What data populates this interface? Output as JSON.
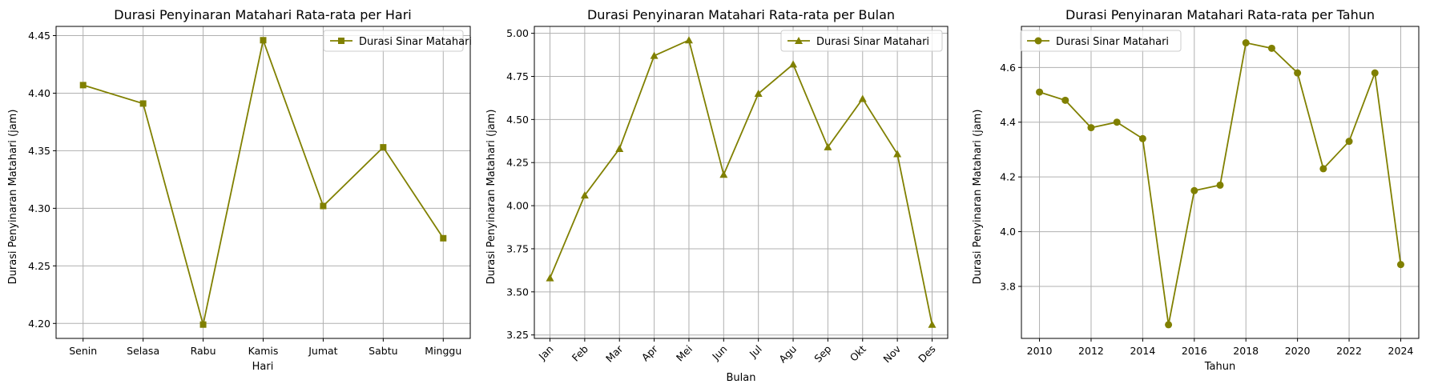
{
  "style": {
    "line_color": "#808000",
    "grid_color": "#b0b0b0"
  },
  "chart_data": [
    {
      "type": "line",
      "title": "Durasi Penyinaran Matahari Rata-rata per Hari",
      "xlabel": "Hari",
      "ylabel": "Durasi Penyinaran Matahari (jam)",
      "categories": [
        "Senin",
        "Selasa",
        "Rabu",
        "Kamis",
        "Jumat",
        "Sabtu",
        "Minggu"
      ],
      "series": [
        {
          "name": "Durasi Sinar Matahari",
          "marker": "square",
          "values": [
            4.407,
            4.391,
            4.199,
            4.446,
            4.302,
            4.353,
            4.274
          ]
        }
      ],
      "ylim": [
        4.187,
        4.458
      ],
      "yticks": [
        4.2,
        4.25,
        4.3,
        4.35,
        4.4,
        4.45
      ],
      "ytick_labels": [
        "4.20",
        "4.25",
        "4.30",
        "4.35",
        "4.40",
        "4.45"
      ],
      "xtick_rotation": 0,
      "grid": true,
      "legend_position": "top-right"
    },
    {
      "type": "line",
      "title": "Durasi Penyinaran Matahari Rata-rata per Bulan",
      "xlabel": "Bulan",
      "ylabel": "Durasi Penyinaran Matahari (jam)",
      "categories": [
        "Jan",
        "Feb",
        "Mar",
        "Apr",
        "Mei",
        "Jun",
        "Jul",
        "Agu",
        "Sep",
        "Okt",
        "Nov",
        "Des"
      ],
      "series": [
        {
          "name": "Durasi Sinar Matahari",
          "marker": "triangle",
          "values": [
            3.58,
            4.06,
            4.33,
            4.87,
            4.96,
            4.18,
            4.65,
            4.82,
            4.34,
            4.62,
            4.3,
            3.31
          ]
        }
      ],
      "ylim": [
        3.23,
        5.04
      ],
      "yticks": [
        3.25,
        3.5,
        3.75,
        4.0,
        4.25,
        4.5,
        4.75,
        5.0
      ],
      "ytick_labels": [
        "3.25",
        "3.50",
        "3.75",
        "4.00",
        "4.25",
        "4.50",
        "4.75",
        "5.00"
      ],
      "xtick_rotation": -45,
      "grid": true,
      "legend_position": "top-right"
    },
    {
      "type": "line",
      "title": "Durasi Penyinaran Matahari Rata-rata per Tahun",
      "xlabel": "Tahun",
      "ylabel": "Durasi Penyinaran Matahari (jam)",
      "x": [
        2010,
        2011,
        2012,
        2013,
        2014,
        2015,
        2016,
        2017,
        2018,
        2019,
        2020,
        2021,
        2022,
        2023,
        2024
      ],
      "series": [
        {
          "name": "Durasi Sinar Matahari",
          "marker": "circle",
          "values": [
            4.51,
            4.48,
            4.38,
            4.4,
            4.34,
            3.66,
            4.15,
            4.17,
            4.69,
            4.67,
            4.58,
            4.23,
            4.33,
            4.58,
            3.88
          ]
        }
      ],
      "xlim": [
        2009.3,
        2024.7
      ],
      "xticks": [
        2010,
        2012,
        2014,
        2016,
        2018,
        2020,
        2022,
        2024
      ],
      "xtick_labels": [
        "2010",
        "2012",
        "2014",
        "2016",
        "2018",
        "2020",
        "2022",
        "2024"
      ],
      "ylim": [
        3.61,
        4.75
      ],
      "yticks": [
        3.8,
        4.0,
        4.2,
        4.4,
        4.6
      ],
      "ytick_labels": [
        "3.8",
        "4.0",
        "4.2",
        "4.4",
        "4.6"
      ],
      "xtick_rotation": 0,
      "grid": true,
      "legend_position": "top-left"
    }
  ]
}
